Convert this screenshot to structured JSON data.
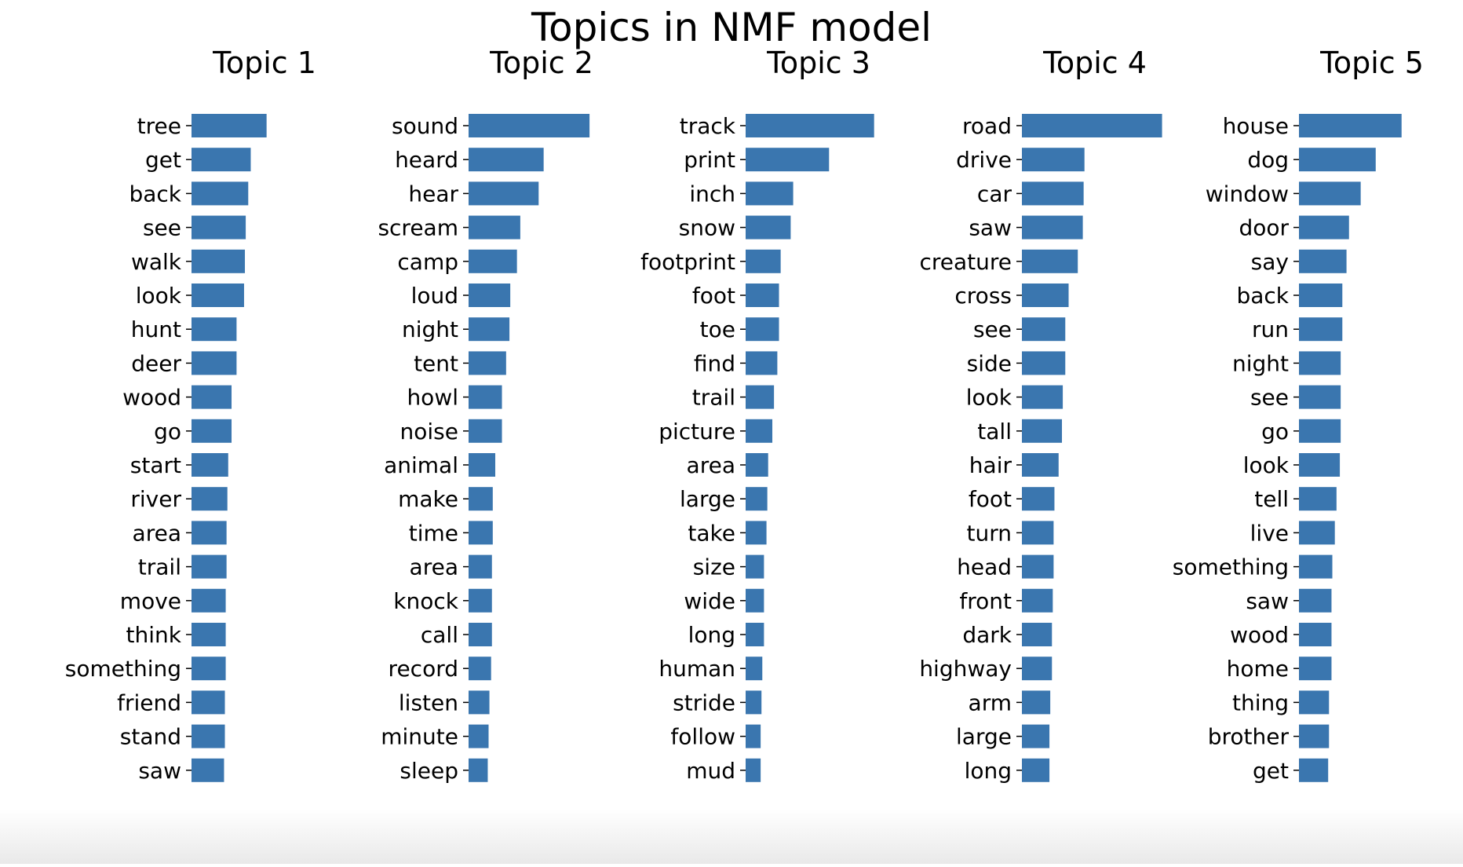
{
  "title": "Topics in NMF model",
  "chart_data": [
    {
      "type": "bar",
      "orientation": "horizontal",
      "title": "Topic 1",
      "categories": [
        "tree",
        "get",
        "back",
        "see",
        "walk",
        "look",
        "hunt",
        "deer",
        "wood",
        "go",
        "start",
        "river",
        "area",
        "trail",
        "move",
        "think",
        "something",
        "friend",
        "stand",
        "saw"
      ],
      "values": [
        0.9,
        0.71,
        0.68,
        0.65,
        0.64,
        0.63,
        0.54,
        0.54,
        0.48,
        0.48,
        0.44,
        0.43,
        0.42,
        0.42,
        0.41,
        0.41,
        0.41,
        0.4,
        0.4,
        0.39
      ],
      "xticks": [
        0,
        1
      ],
      "xlim": [
        0,
        1.75
      ],
      "color": "#3a76af"
    },
    {
      "type": "bar",
      "orientation": "horizontal",
      "title": "Topic 2",
      "categories": [
        "sound",
        "heard",
        "hear",
        "scream",
        "camp",
        "loud",
        "night",
        "tent",
        "howl",
        "noise",
        "animal",
        "make",
        "time",
        "area",
        "knock",
        "call",
        "record",
        "listen",
        "minute",
        "sleep"
      ],
      "values": [
        1.45,
        0.9,
        0.84,
        0.62,
        0.58,
        0.5,
        0.49,
        0.45,
        0.4,
        0.4,
        0.32,
        0.29,
        0.29,
        0.28,
        0.28,
        0.28,
        0.27,
        0.25,
        0.24,
        0.23
      ],
      "xticks": [
        0,
        1
      ],
      "xlim": [
        0,
        1.75
      ],
      "color": "#3a76af"
    },
    {
      "type": "bar",
      "orientation": "horizontal",
      "title": "Topic 3",
      "categories": [
        "track",
        "print",
        "inch",
        "snow",
        "footprint",
        "foot",
        "toe",
        "find",
        "trail",
        "picture",
        "area",
        "large",
        "take",
        "size",
        "wide",
        "long",
        "human",
        "stride",
        "follow",
        "mud"
      ],
      "values": [
        1.54,
        1.0,
        0.57,
        0.54,
        0.42,
        0.4,
        0.4,
        0.38,
        0.34,
        0.32,
        0.27,
        0.26,
        0.25,
        0.22,
        0.22,
        0.22,
        0.2,
        0.19,
        0.18,
        0.18
      ],
      "xticks": [
        0,
        1
      ],
      "xlim": [
        0,
        1.75
      ],
      "color": "#3a76af"
    },
    {
      "type": "bar",
      "orientation": "horizontal",
      "title": "Topic 4",
      "categories": [
        "road",
        "drive",
        "car",
        "saw",
        "creature",
        "cross",
        "see",
        "side",
        "look",
        "tall",
        "hair",
        "foot",
        "turn",
        "head",
        "front",
        "dark",
        "highway",
        "arm",
        "large",
        "long"
      ],
      "values": [
        1.68,
        0.75,
        0.74,
        0.73,
        0.67,
        0.56,
        0.52,
        0.52,
        0.49,
        0.48,
        0.44,
        0.39,
        0.38,
        0.38,
        0.37,
        0.36,
        0.36,
        0.34,
        0.33,
        0.33
      ],
      "xticks": [
        0,
        1
      ],
      "xlim": [
        0,
        1.75
      ],
      "color": "#3a76af"
    },
    {
      "type": "bar",
      "orientation": "horizontal",
      "title": "Topic 5",
      "categories": [
        "house",
        "dog",
        "window",
        "door",
        "say",
        "back",
        "run",
        "night",
        "see",
        "go",
        "look",
        "tell",
        "live",
        "something",
        "saw",
        "wood",
        "home",
        "thing",
        "brother",
        "get"
      ],
      "values": [
        1.23,
        0.92,
        0.74,
        0.6,
        0.57,
        0.52,
        0.52,
        0.5,
        0.5,
        0.5,
        0.49,
        0.45,
        0.43,
        0.4,
        0.39,
        0.39,
        0.39,
        0.36,
        0.36,
        0.35
      ],
      "xticks": [
        0,
        1
      ],
      "xlim": [
        0,
        1.75
      ],
      "color": "#3a76af"
    }
  ]
}
